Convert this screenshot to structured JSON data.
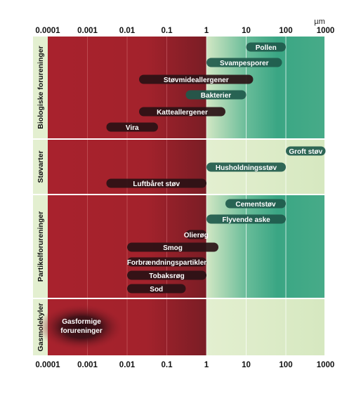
{
  "unit_label": "µm",
  "scale": {
    "type": "log",
    "ticks": [
      {
        "value": 0.0001,
        "label": "0.0001"
      },
      {
        "value": 0.001,
        "label": "0.001"
      },
      {
        "value": 0.01,
        "label": "0.01"
      },
      {
        "value": 0.1,
        "label": "0.1"
      },
      {
        "value": 1,
        "label": "1"
      },
      {
        "value": 10,
        "label": "10"
      },
      {
        "value": 100,
        "label": "100"
      },
      {
        "value": 1000,
        "label": "1000"
      }
    ]
  },
  "colors": {
    "red": "#a8222d",
    "red_dark": "#7a1d25",
    "green": "#3aa684",
    "green_light": "#d9e9c2",
    "band_light": "#e3efd0",
    "bar_dark": "#1f5a4c",
    "bar_black": "#2a1115"
  },
  "categories": [
    {
      "label": "Biologiske forureninger",
      "items": [
        {
          "label": "Pollen",
          "min": 10,
          "max": 100
        },
        {
          "label": "Svampesporer",
          "min": 1,
          "max": 80
        },
        {
          "label": "Støvmideallergener",
          "min": 0.02,
          "max": 15
        },
        {
          "label": "Bakterier",
          "min": 0.3,
          "max": 10
        },
        {
          "label": "Katteallergener",
          "min": 0.02,
          "max": 3
        },
        {
          "label": "Vira",
          "min": 0.003,
          "max": 0.06
        }
      ]
    },
    {
      "label": "Støvarter",
      "items": [
        {
          "label": "Groft støv",
          "min": 100,
          "max": 1000
        },
        {
          "label": "Husholdningsstøv",
          "min": 1,
          "max": 100
        },
        {
          "label": "Luftbåret støv",
          "min": 0.003,
          "max": 1
        }
      ]
    },
    {
      "label": "Partikelforureninger",
      "items": [
        {
          "label": "Cementstøv",
          "min": 3,
          "max": 100
        },
        {
          "label": "Flyvende aske",
          "min": 1,
          "max": 100
        },
        {
          "label": "Olierøg",
          "min": 0.3,
          "max": 1
        },
        {
          "label": "Smog",
          "min": 0.01,
          "max": 2
        },
        {
          "label": "Forbrændningspartikler",
          "min": 0.01,
          "max": 1
        },
        {
          "label": "Tobaksrøg",
          "min": 0.01,
          "max": 1
        },
        {
          "label": "Sod",
          "min": 0.01,
          "max": 0.3
        }
      ]
    },
    {
      "label": "Gasmolekyler",
      "items": [
        {
          "label": "Gasformige forureninger",
          "lines": [
            "Gasformige",
            "forureninger"
          ],
          "min": 0.0001,
          "max": 0.005
        }
      ]
    }
  ]
}
